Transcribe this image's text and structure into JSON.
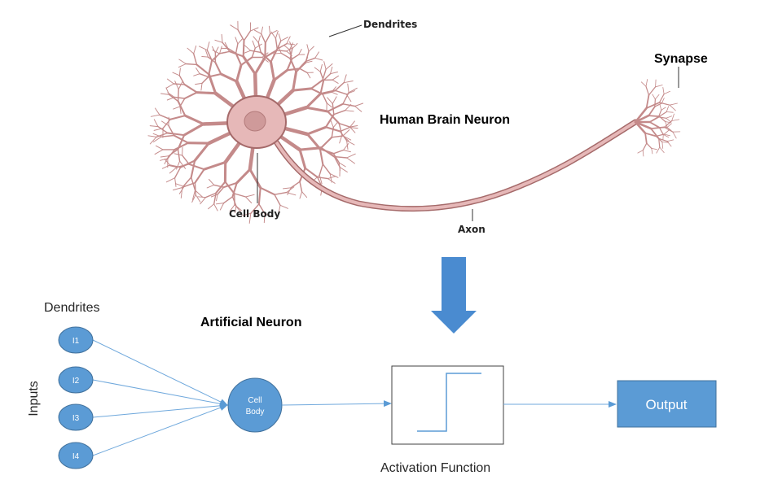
{
  "colors": {
    "neuron_fill": "#e6b8b8",
    "neuron_stroke": "#a56a6a",
    "nucleus": "#cf9a9a",
    "node_fill": "#5b9bd5",
    "node_stroke": "#41719c",
    "edge": "#6fa8dc",
    "arrow": "#4a8bd0"
  },
  "biological": {
    "title": "Human Brain Neuron",
    "labels": {
      "dendrites": "Dendrites",
      "cell_body": "Cell Body",
      "axon": "Axon",
      "synapse": "Synapse"
    }
  },
  "artificial": {
    "title": "Artificial Neuron",
    "dendrites_label": "Dendrites",
    "inputs_label": "Inputs",
    "inputs": [
      "I1",
      "I2",
      "I3",
      "I4"
    ],
    "cell_body": {
      "line1": "Cell",
      "line2": "Body"
    },
    "activation_label": "Activation Function",
    "output_label": "Output"
  },
  "transition_arrow_icon": "down-arrow-icon"
}
